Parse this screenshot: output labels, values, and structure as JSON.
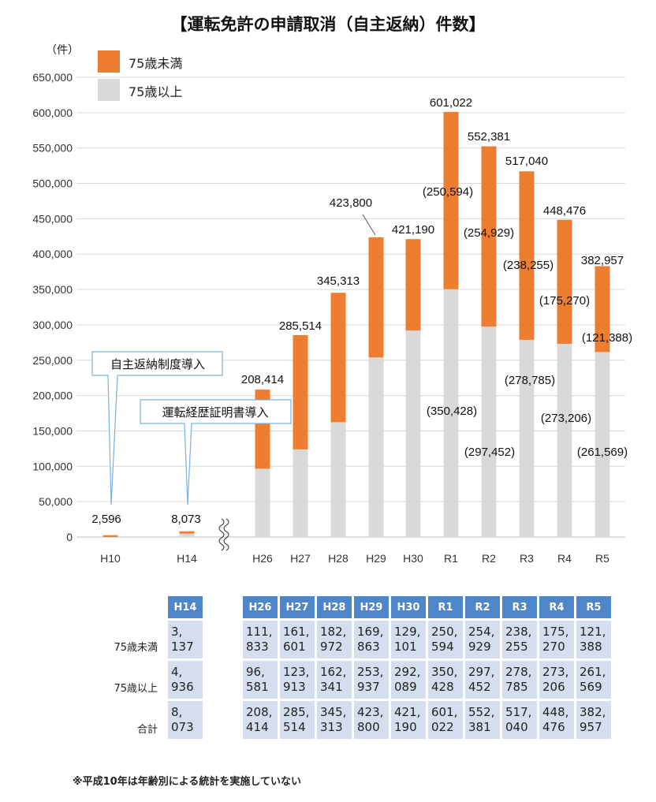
{
  "chart_data": {
    "type": "bar",
    "stacked": true,
    "title": "【運転免許の申請取消（自主返納）件数】",
    "ylabel": "（件）",
    "ylim": [
      0,
      650000
    ],
    "yticks": [
      "0",
      "50,000",
      "100,000",
      "150,000",
      "200,000",
      "250,000",
      "300,000",
      "350,000",
      "400,000",
      "450,000",
      "500,000",
      "550,000",
      "600,000",
      "650,000"
    ],
    "grid": true,
    "legend_position": "top-left",
    "categories": [
      "H10",
      "H14",
      "H26",
      "H27",
      "H28",
      "H29",
      "H30",
      "R1",
      "R2",
      "R3",
      "R4",
      "R5"
    ],
    "series": [
      {
        "name": "75歳以上",
        "color": "#d9d9d9",
        "values": [
          0,
          4936,
          96581,
          123913,
          162341,
          253937,
          292089,
          350428,
          297452,
          278785,
          273206,
          261569
        ]
      },
      {
        "name": "75歳未満",
        "color": "#ed7d31",
        "values": [
          2596,
          3137,
          111833,
          161601,
          182972,
          169863,
          129101,
          250594,
          254929,
          238255,
          175270,
          121388
        ]
      }
    ],
    "total_labels": [
      "2,596",
      "8,073",
      "208,414",
      "285,514",
      "345,313",
      "423,800",
      "421,190",
      "601,022",
      "552,381",
      "517,040",
      "448,476",
      "382,957"
    ],
    "under75_labels": [
      "",
      "",
      "",
      "",
      "",
      "",
      "",
      "(250,594)",
      "(254,929)",
      "(238,255)",
      "(175,270)",
      "(121,388)"
    ],
    "over75_labels": [
      "",
      "",
      "",
      "",
      "",
      "",
      "",
      "(350,428)",
      "(297,452)",
      "(278,785)",
      "(273,206)",
      "(261,569)"
    ],
    "annotations": [
      "自主返納制度導入",
      "運転経歴証明書導入"
    ]
  },
  "table": {
    "h14_header": "H14",
    "headers": [
      "H26",
      "H27",
      "H28",
      "H29",
      "H30",
      "R1",
      "R2",
      "R3",
      "R4",
      "R5"
    ],
    "rows": [
      {
        "label": "75歳未満",
        "h14": "3,\n137",
        "cells": [
          "111,\n833",
          "161,\n601",
          "182,\n972",
          "169,\n863",
          "129,\n101",
          "250,\n594",
          "254,\n929",
          "238,\n255",
          "175,\n270",
          "121,\n388"
        ]
      },
      {
        "label": "75歳以上",
        "h14": "4,\n936",
        "cells": [
          "96,\n581",
          "123,\n913",
          "162,\n341",
          "253,\n937",
          "292,\n089",
          "350,\n428",
          "297,\n452",
          "278,\n785",
          "273,\n206",
          "261,\n569"
        ]
      },
      {
        "label": "合計",
        "h14": "8,\n073",
        "cells": [
          "208,\n414",
          "285,\n514",
          "345,\n313",
          "423,\n800",
          "421,\n190",
          "601,\n022",
          "552,\n381",
          "517,\n040",
          "448,\n476",
          "382,\n957"
        ]
      }
    ]
  },
  "footnote": "※平成10年は年齢別による統計を実施していない"
}
